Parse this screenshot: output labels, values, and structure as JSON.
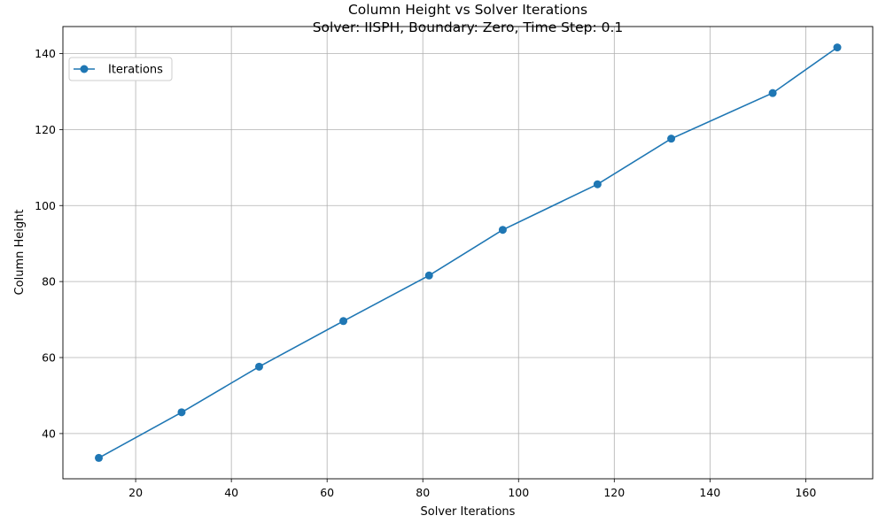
{
  "chart_data": {
    "type": "line",
    "title": "Column Height vs Solver Iterations",
    "subtitle": "Solver: IISPH, Boundary: Zero, Time Step: 0.1",
    "xlabel": "Solver Iterations",
    "ylabel": "Column Height",
    "xlim": [
      4.8,
      174.0
    ],
    "ylim": [
      28.1,
      147.1
    ],
    "xticks": [
      20,
      40,
      60,
      80,
      100,
      120,
      140,
      160
    ],
    "yticks": [
      40,
      60,
      80,
      100,
      120,
      140
    ],
    "grid": true,
    "legend_position": "top-left",
    "series": [
      {
        "name": "Iterations",
        "color": "#1f77b4",
        "marker": "circle",
        "x": [
          12.3,
          29.6,
          45.8,
          63.4,
          81.3,
          96.7,
          116.5,
          131.9,
          153.1,
          166.6
        ],
        "y": [
          33.6,
          45.6,
          57.6,
          69.6,
          81.6,
          93.6,
          105.6,
          117.6,
          129.6,
          141.6
        ]
      }
    ]
  }
}
